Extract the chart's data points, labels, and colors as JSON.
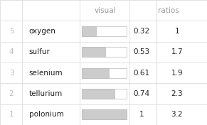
{
  "rows": [
    {
      "rank": 5,
      "element": "oxygen",
      "value": 0.32,
      "ratio": "1"
    },
    {
      "rank": 4,
      "element": "sulfur",
      "value": 0.53,
      "ratio": "1.7"
    },
    {
      "rank": 3,
      "element": "selenium",
      "value": 0.61,
      "ratio": "1.9"
    },
    {
      "rank": 2,
      "element": "tellurium",
      "value": 0.74,
      "ratio": "2.3"
    },
    {
      "rank": 1,
      "element": "polonium",
      "value": 1.0,
      "ratio": "3.2"
    }
  ],
  "bar_fill_color": "#cccccc",
  "bar_bg_color": "#f0f0f0",
  "bar_outline_color": "#bbbbbb",
  "text_color_main": "#222222",
  "text_color_dim": "#bbbbbb",
  "header_color": "#999999",
  "bg_color": "#ffffff",
  "grid_color": "#dddddd",
  "font_size": 7.5,
  "header_font_size": 7.5
}
